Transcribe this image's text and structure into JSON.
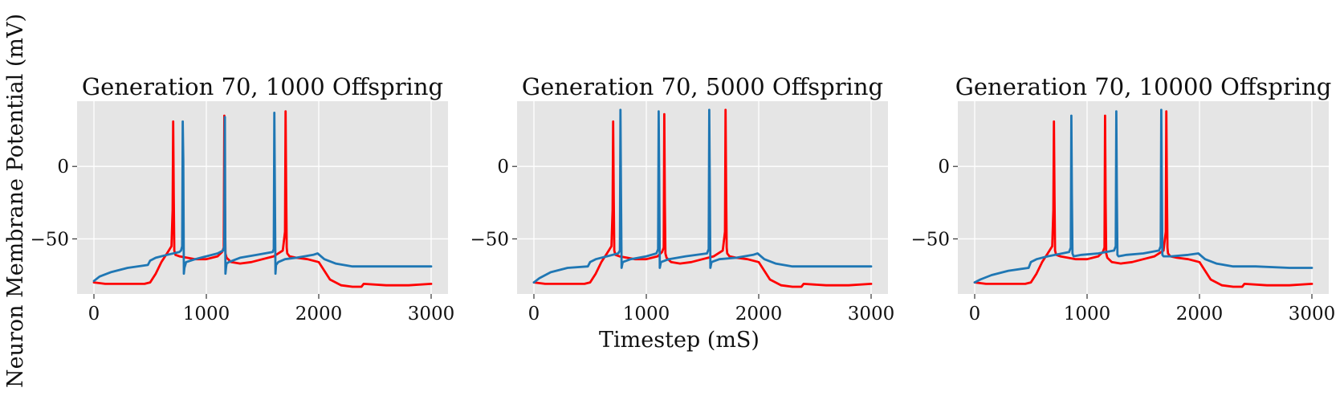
{
  "figure": {
    "ylabel": "Neuron Membrane Potential (mV)",
    "xlabel": "Timestep (mS)"
  },
  "colors": {
    "blue_series": "#1f77b4",
    "red_series": "#ff0000",
    "plot_background": "#e5e5e5",
    "grid": "#ffffff"
  },
  "chart_data": [
    {
      "type": "line",
      "title": "Generation 70, 1000 Offspring",
      "xlabel": "",
      "ylabel": "",
      "xlim": [
        -150,
        3150
      ],
      "ylim": [
        -88,
        45
      ],
      "xticks": [
        0,
        1000,
        2000,
        3000
      ],
      "xtick_labels": [
        "0",
        "1000",
        "2000",
        "3000"
      ],
      "yticks": [
        0,
        -50
      ],
      "ytick_labels": [
        "0",
        "−50"
      ],
      "grid": true,
      "series": [
        {
          "color": "#ff0000",
          "x": [
            0,
            100,
            300,
            450,
            500,
            550,
            600,
            650,
            690,
            700,
            705,
            710,
            715,
            725,
            760,
            830,
            900,
            1000,
            1100,
            1140,
            1155,
            1160,
            1165,
            1170,
            1180,
            1220,
            1300,
            1400,
            1500,
            1600,
            1680,
            1700,
            1705,
            1710,
            1715,
            1720,
            1740,
            1800,
            1900,
            2000,
            2050,
            2100,
            2200,
            2300,
            2380,
            2400,
            2600,
            2800,
            3000
          ],
          "y": [
            -80,
            -81,
            -81,
            -81,
            -80,
            -74,
            -66,
            -60,
            -55,
            -30,
            31,
            -20,
            -58,
            -61,
            -62,
            -63,
            -64,
            -64,
            -62,
            -59,
            -56,
            35,
            -25,
            -60,
            -63,
            -66,
            -67,
            -66,
            -64,
            -62,
            -58,
            -45,
            38,
            -15,
            -56,
            -60,
            -62,
            -63,
            -64,
            -66,
            -72,
            -78,
            -82,
            -83,
            -83,
            -81,
            -82,
            -82,
            -81
          ]
        },
        {
          "color": "#1f77b4",
          "x": [
            0,
            50,
            150,
            300,
            480,
            500,
            550,
            650,
            760,
            775,
            785,
            790,
            795,
            800,
            805,
            820,
            900,
            1000,
            1100,
            1150,
            1160,
            1165,
            1170,
            1175,
            1180,
            1200,
            1300,
            1450,
            1590,
            1600,
            1605,
            1610,
            1615,
            1620,
            1640,
            1700,
            1800,
            1950,
            1990,
            2050,
            2150,
            2300,
            2500,
            2800,
            3000
          ],
          "y": [
            -79,
            -76,
            -73,
            -70,
            -68,
            -65,
            -63,
            -61,
            -59,
            -58,
            -55,
            31,
            5,
            -74,
            -70,
            -66,
            -64,
            -62,
            -60,
            -58,
            -55,
            34,
            -74,
            -70,
            -67,
            -66,
            -63,
            -61,
            -59,
            -57,
            37,
            -20,
            -74,
            -68,
            -66,
            -64,
            -63,
            -61,
            -60,
            -64,
            -67,
            -69,
            -69,
            -69,
            -69
          ]
        }
      ]
    },
    {
      "type": "line",
      "title": "Generation 70, 5000 Offspring",
      "xlabel": "Timestep (mS)",
      "ylabel": "",
      "xlim": [
        -150,
        3150
      ],
      "ylim": [
        -88,
        45
      ],
      "xticks": [
        0,
        1000,
        2000,
        3000
      ],
      "xtick_labels": [
        "0",
        "1000",
        "2000",
        "3000"
      ],
      "yticks": [
        0,
        -50
      ],
      "ytick_labels": [
        "0",
        "−50"
      ],
      "grid": true,
      "series": [
        {
          "color": "#ff0000",
          "x": [
            0,
            100,
            300,
            450,
            500,
            550,
            600,
            650,
            690,
            700,
            705,
            710,
            715,
            725,
            760,
            830,
            900,
            1000,
            1100,
            1140,
            1155,
            1160,
            1165,
            1170,
            1180,
            1220,
            1300,
            1400,
            1500,
            1600,
            1680,
            1700,
            1705,
            1710,
            1715,
            1720,
            1740,
            1800,
            1900,
            2000,
            2050,
            2100,
            2200,
            2300,
            2380,
            2400,
            2600,
            2800,
            3000
          ],
          "y": [
            -80,
            -81,
            -81,
            -81,
            -80,
            -74,
            -66,
            -60,
            -55,
            -30,
            31,
            -20,
            -58,
            -61,
            -62,
            -63,
            -64,
            -64,
            -62,
            -59,
            -56,
            36,
            -25,
            -60,
            -63,
            -66,
            -67,
            -66,
            -64,
            -62,
            -58,
            -45,
            39,
            -15,
            -56,
            -60,
            -62,
            -63,
            -64,
            -66,
            -72,
            -78,
            -82,
            -83,
            -83,
            -81,
            -82,
            -82,
            -81
          ]
        },
        {
          "color": "#1f77b4",
          "x": [
            0,
            50,
            150,
            300,
            480,
            500,
            550,
            650,
            750,
            765,
            770,
            775,
            780,
            790,
            860,
            1000,
            1090,
            1105,
            1110,
            1115,
            1120,
            1130,
            1200,
            1350,
            1540,
            1555,
            1560,
            1565,
            1570,
            1580,
            1650,
            1800,
            1950,
            1990,
            2050,
            2150,
            2300,
            2500,
            2800,
            3000
          ],
          "y": [
            -80,
            -77,
            -73,
            -70,
            -69,
            -66,
            -64,
            -62,
            -60,
            -58,
            39,
            -20,
            -70,
            -66,
            -64,
            -62,
            -60,
            -57,
            38,
            -10,
            -70,
            -66,
            -64,
            -62,
            -60,
            -57,
            39,
            -15,
            -70,
            -66,
            -64,
            -63,
            -61,
            -60,
            -64,
            -67,
            -69,
            -69,
            -69,
            -69
          ]
        }
      ]
    },
    {
      "type": "line",
      "title": "Generation 70, 10000 Offspring",
      "xlabel": "",
      "ylabel": "",
      "xlim": [
        -150,
        3150
      ],
      "ylim": [
        -88,
        45
      ],
      "xticks": [
        0,
        1000,
        2000,
        3000
      ],
      "xtick_labels": [
        "0",
        "1000",
        "2000",
        "3000"
      ],
      "yticks": [
        0,
        -50
      ],
      "ytick_labels": [
        "0",
        "−50"
      ],
      "grid": true,
      "series": [
        {
          "color": "#ff0000",
          "x": [
            0,
            100,
            300,
            450,
            500,
            550,
            600,
            650,
            690,
            700,
            705,
            710,
            715,
            725,
            760,
            830,
            900,
            1000,
            1100,
            1140,
            1155,
            1160,
            1165,
            1170,
            1180,
            1220,
            1300,
            1400,
            1500,
            1600,
            1680,
            1700,
            1705,
            1710,
            1715,
            1720,
            1740,
            1800,
            1900,
            2000,
            2050,
            2100,
            2200,
            2300,
            2380,
            2400,
            2600,
            2800,
            3000
          ],
          "y": [
            -80,
            -81,
            -81,
            -81,
            -80,
            -74,
            -66,
            -60,
            -55,
            -30,
            31,
            -20,
            -58,
            -61,
            -62,
            -63,
            -64,
            -64,
            -62,
            -59,
            -56,
            35,
            -25,
            -60,
            -63,
            -66,
            -67,
            -66,
            -64,
            -62,
            -58,
            -45,
            38,
            -15,
            -56,
            -60,
            -62,
            -63,
            -64,
            -66,
            -72,
            -78,
            -82,
            -83,
            -83,
            -81,
            -82,
            -82,
            -81
          ]
        },
        {
          "color": "#1f77b4",
          "x": [
            0,
            50,
            150,
            300,
            480,
            500,
            550,
            650,
            780,
            840,
            855,
            860,
            865,
            870,
            880,
            950,
            1100,
            1240,
            1255,
            1260,
            1265,
            1270,
            1280,
            1350,
            1500,
            1640,
            1655,
            1660,
            1665,
            1670,
            1680,
            1750,
            1900,
            1990,
            2050,
            2150,
            2300,
            2500,
            2800,
            3000
          ],
          "y": [
            -80,
            -78,
            -75,
            -72,
            -70,
            -66,
            -64,
            -62,
            -60,
            -59,
            -56,
            35,
            -20,
            -60,
            -62,
            -61,
            -60,
            -58,
            -55,
            38,
            -20,
            -61,
            -62,
            -61,
            -60,
            -58,
            -55,
            39,
            -15,
            -61,
            -62,
            -62,
            -61,
            -60,
            -64,
            -67,
            -69,
            -69,
            -70,
            -70
          ]
        }
      ]
    }
  ]
}
